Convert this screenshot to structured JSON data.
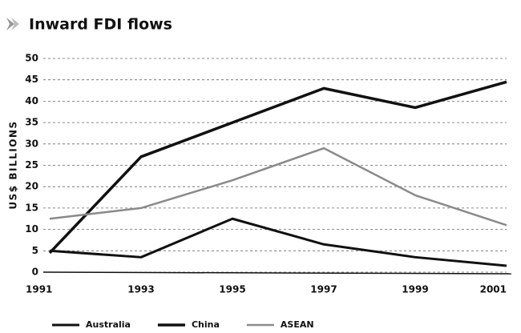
{
  "chart_data": {
    "type": "line",
    "title": "Inward FDI flows",
    "y_label": "US$ BILLIONS",
    "x": [
      1991,
      1993,
      1995,
      1997,
      1999,
      2001
    ],
    "xlim": [
      1991,
      2001
    ],
    "xticks": [
      1991,
      1993,
      1995,
      1997,
      1999,
      2001
    ],
    "ylim": [
      0,
      50
    ],
    "yticks": [
      0,
      5,
      10,
      15,
      20,
      25,
      30,
      35,
      40,
      45,
      50
    ],
    "grid": true,
    "legend": "bottom",
    "series": [
      {
        "name": "Australia",
        "color": "#111111",
        "width": 3,
        "values": [
          5,
          3.5,
          12.5,
          6.5,
          3.5,
          1.5
        ]
      },
      {
        "name": "China",
        "color": "#111111",
        "width": 3.5,
        "values": [
          4.5,
          27,
          35,
          43,
          38.5,
          44.5
        ]
      },
      {
        "name": "ASEAN",
        "color": "#8a8a8a",
        "width": 2.5,
        "values": [
          12.5,
          15,
          21.5,
          29,
          18,
          11
        ]
      }
    ]
  }
}
